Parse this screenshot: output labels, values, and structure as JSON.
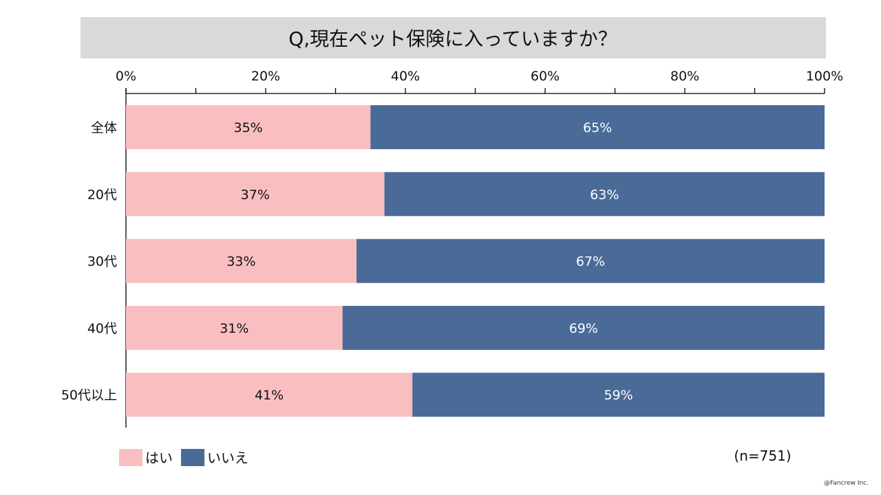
{
  "chart_data": {
    "type": "bar",
    "orientation": "horizontal",
    "stacked": true,
    "title": "Q,現在ペット保険に入っていますか？",
    "categories": [
      "全体",
      "20代",
      "30代",
      "40代",
      "50代以上"
    ],
    "series": [
      {
        "name": "はい",
        "values": [
          35,
          37,
          33,
          31,
          41
        ],
        "color": "#f9bfc0",
        "label_color": "#111111"
      },
      {
        "name": "いいえ",
        "values": [
          65,
          63,
          67,
          69,
          59
        ],
        "color": "#4a6a98",
        "label_color": "#ffffff"
      }
    ],
    "xlim": [
      0,
      100
    ],
    "x_ticks": [
      "0%",
      "20%",
      "40%",
      "60%",
      "80%",
      "100%"
    ],
    "x_axis_position": "top",
    "grid": false,
    "legend_position": "bottom-left",
    "note": "(n=751)"
  },
  "credit": "@Fancrew Inc.",
  "colors": {
    "title_bg": "#d9d9dc",
    "axis": "#000000"
  }
}
